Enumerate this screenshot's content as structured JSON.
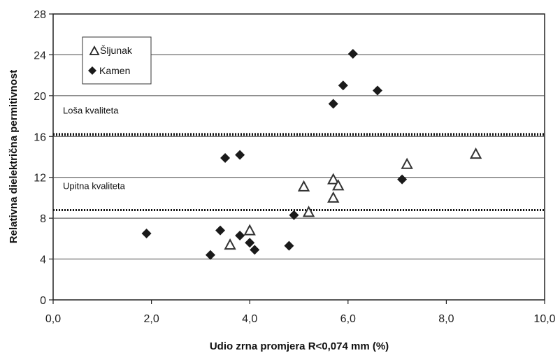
{
  "chart_data": {
    "type": "scatter",
    "title": "",
    "xlabel": "Udio zrna promjera R<0,074 mm (%)",
    "ylabel": "Relativna dielektrična permitivnost",
    "xlim": [
      0,
      10
    ],
    "ylim": [
      0,
      28
    ],
    "x_ticks": [
      "0,0",
      "2,0",
      "4,0",
      "6,0",
      "8,0",
      "10,0"
    ],
    "x_tick_values": [
      0,
      2,
      4,
      6,
      8,
      10
    ],
    "y_ticks": [
      "0",
      "4",
      "8",
      "12",
      "16",
      "20",
      "24",
      "28"
    ],
    "y_tick_values": [
      0,
      4,
      8,
      12,
      16,
      20,
      24,
      28
    ],
    "grid": "horizontal",
    "legend_position": "top-left",
    "series": [
      {
        "name": "Šljunak",
        "marker": "open-triangle",
        "color": "#333333",
        "points": [
          [
            3.6,
            5.4
          ],
          [
            4.0,
            6.8
          ],
          [
            5.1,
            11.1
          ],
          [
            5.2,
            8.6
          ],
          [
            5.7,
            11.8
          ],
          [
            5.7,
            10.0
          ],
          [
            5.8,
            11.2
          ],
          [
            7.2,
            13.3
          ],
          [
            8.6,
            14.3
          ]
        ]
      },
      {
        "name": "Kamen",
        "marker": "filled-diamond",
        "color": "#1a1a1a",
        "points": [
          [
            1.9,
            6.5
          ],
          [
            3.2,
            4.4
          ],
          [
            3.4,
            6.8
          ],
          [
            3.5,
            13.9
          ],
          [
            3.8,
            14.2
          ],
          [
            3.8,
            6.3
          ],
          [
            4.0,
            5.6
          ],
          [
            4.1,
            4.9
          ],
          [
            4.8,
            5.3
          ],
          [
            4.9,
            8.3
          ],
          [
            5.7,
            19.2
          ],
          [
            5.9,
            21.0
          ],
          [
            6.1,
            24.1
          ],
          [
            6.6,
            20.5
          ],
          [
            7.1,
            11.8
          ]
        ]
      }
    ],
    "reference_lines": [
      {
        "y": 16.2,
        "label": "Loša kvaliteta",
        "style": "dotted"
      },
      {
        "y": 8.8,
        "label": "Upitna kvaliteta",
        "style": "dotted"
      }
    ]
  }
}
